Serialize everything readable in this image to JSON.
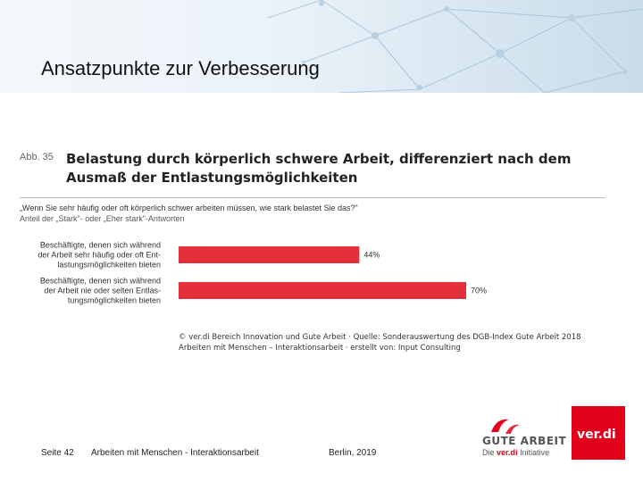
{
  "slide": {
    "title": "Ansatzpunkte zur Verbesserung"
  },
  "figure": {
    "label": "Abb. 35",
    "title_line1": "Belastung durch körperlich schwere Arbeit, differenziert nach dem",
    "title_line2": "Ausmaß der Entlastungsmöglichkeiten",
    "question": "„Wenn Sie sehr häufig oder oft körperlich schwer arbeiten müssen, wie stark belastet Sie das?\"",
    "note": "Anteil der „Stark\"- oder „Eher stark\"-Antworten",
    "source_line1": "© ver.di Bereich Innovation und Gute Arbeit · Quelle: Sonderauswertung des DGB-Index Gute Arbeit 2018",
    "source_line2": "Arbeiten mit Menschen – Interaktionsarbeit · erstellt von: Input Consulting"
  },
  "chart_data": {
    "type": "bar",
    "orientation": "horizontal",
    "categories": [
      [
        "Beschäftigte, denen sich während",
        "der Arbeit sehr häufig oder oft Ent-",
        "lastungsmöglichkeiten bieten"
      ],
      [
        "Beschäftigte, denen sich während",
        "der Arbeit nie oder selten Entlas-",
        "tungsmöglichkeiten bieten"
      ]
    ],
    "values": [
      44,
      70
    ],
    "value_labels": [
      "44%",
      "70%"
    ],
    "unit": "%",
    "xlim": [
      0,
      100
    ],
    "bar_color": "#e3303a",
    "grid": false
  },
  "footer": {
    "page": "Seite 42",
    "topic": "Arbeiten mit Menschen - Interaktionsarbeit",
    "place_date": "Berlin, 2019"
  },
  "logos": {
    "gute_arbeit": "GUTE ARBEIT",
    "gute_sub_prefix": "Die",
    "gute_sub_brand": "ver.di",
    "gute_sub_suffix": "Initiative",
    "verdi": "ver.di",
    "brand_color": "#e2001a"
  }
}
